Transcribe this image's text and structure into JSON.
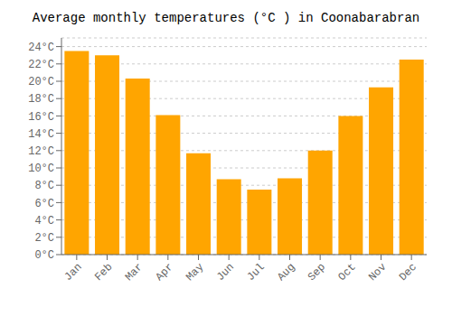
{
  "chart_data": {
    "type": "bar",
    "title": "Average monthly temperatures (°C ) in Coonabarabran",
    "categories": [
      "Jan",
      "Feb",
      "Mar",
      "Apr",
      "May",
      "Jun",
      "Jul",
      "Aug",
      "Sep",
      "Oct",
      "Nov",
      "Dec"
    ],
    "values": [
      23.5,
      23.0,
      20.3,
      16.1,
      11.7,
      8.7,
      7.5,
      8.8,
      12.0,
      16.0,
      19.3,
      22.5
    ],
    "color": "#FFA500",
    "ylim": [
      0,
      25
    ],
    "yticks": [
      {
        "value": 0,
        "label": "0°C"
      },
      {
        "value": 2,
        "label": "2°C"
      },
      {
        "value": 4,
        "label": "4°C"
      },
      {
        "value": 6,
        "label": "6°C"
      },
      {
        "value": 8,
        "label": "8°C"
      },
      {
        "value": 10,
        "label": "10°C"
      },
      {
        "value": 12,
        "label": "12°C"
      },
      {
        "value": 14,
        "label": "14°C"
      },
      {
        "value": 16,
        "label": "16°C"
      },
      {
        "value": 18,
        "label": "18°C"
      },
      {
        "value": 20,
        "label": "20°C"
      },
      {
        "value": 22,
        "label": "22°C"
      },
      {
        "value": 24,
        "label": "24°C"
      }
    ],
    "grid": true
  }
}
